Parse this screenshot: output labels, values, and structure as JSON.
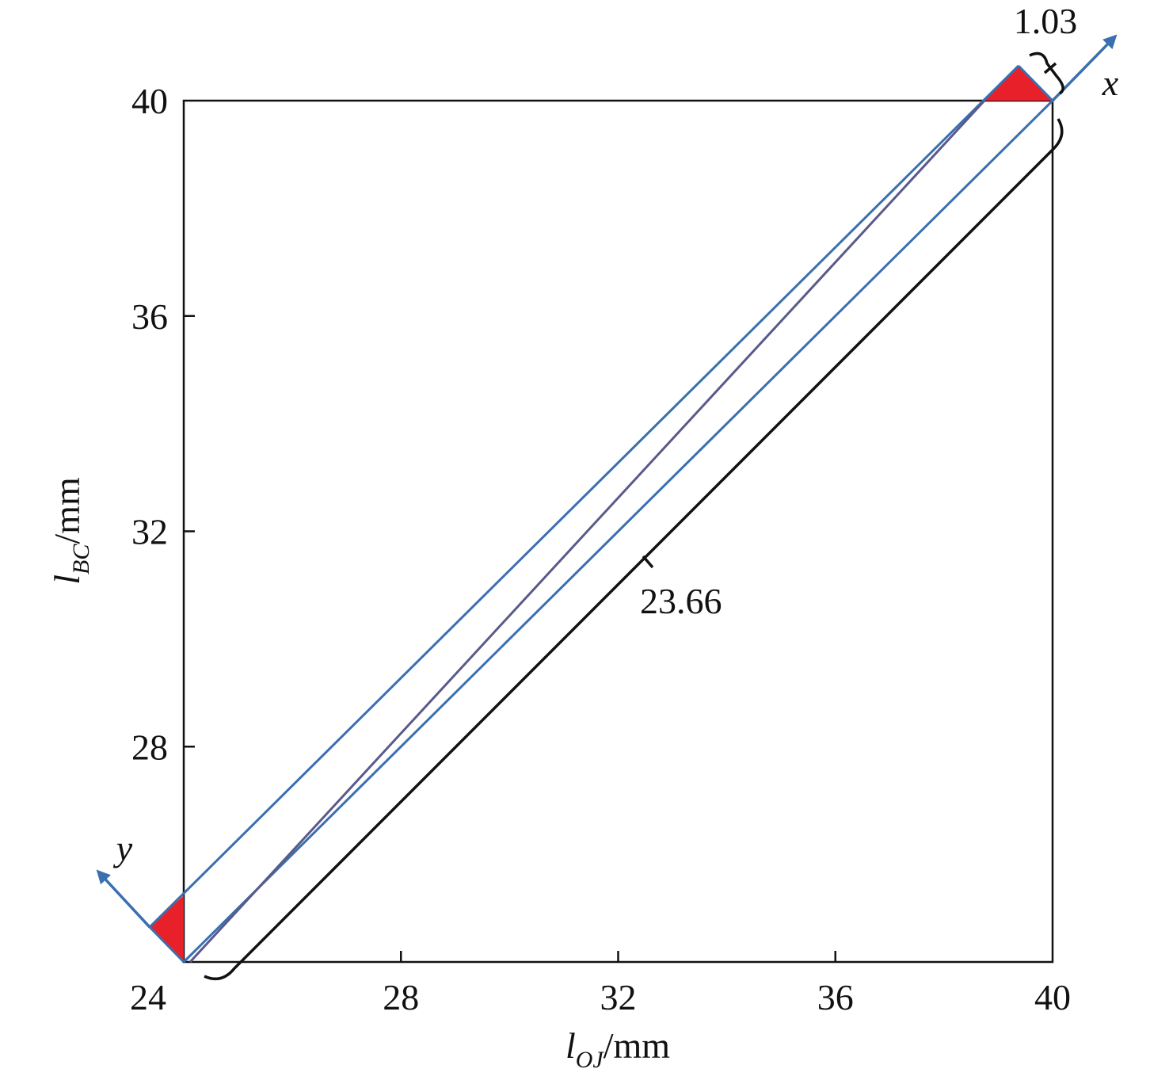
{
  "chart_data": {
    "type": "region",
    "xlabel": {
      "symbol": "l",
      "sub": "OJ",
      "unit": "/mm"
    },
    "ylabel": {
      "symbol": "l",
      "sub": "BC",
      "unit": "/mm"
    },
    "xlim": [
      24,
      40
    ],
    "ylim": [
      24,
      40
    ],
    "xticks": [
      24,
      28,
      32,
      36,
      40
    ],
    "yticks": [
      24,
      28,
      32,
      36,
      40
    ],
    "band": {
      "color": "#3a6fb0",
      "center_color": "#5a5a8a",
      "corner_color": "#e8202a"
    },
    "dimensions": {
      "length": 23.66,
      "width": 1.03
    },
    "axes_labels": {
      "x": "x",
      "y": "y"
    }
  }
}
